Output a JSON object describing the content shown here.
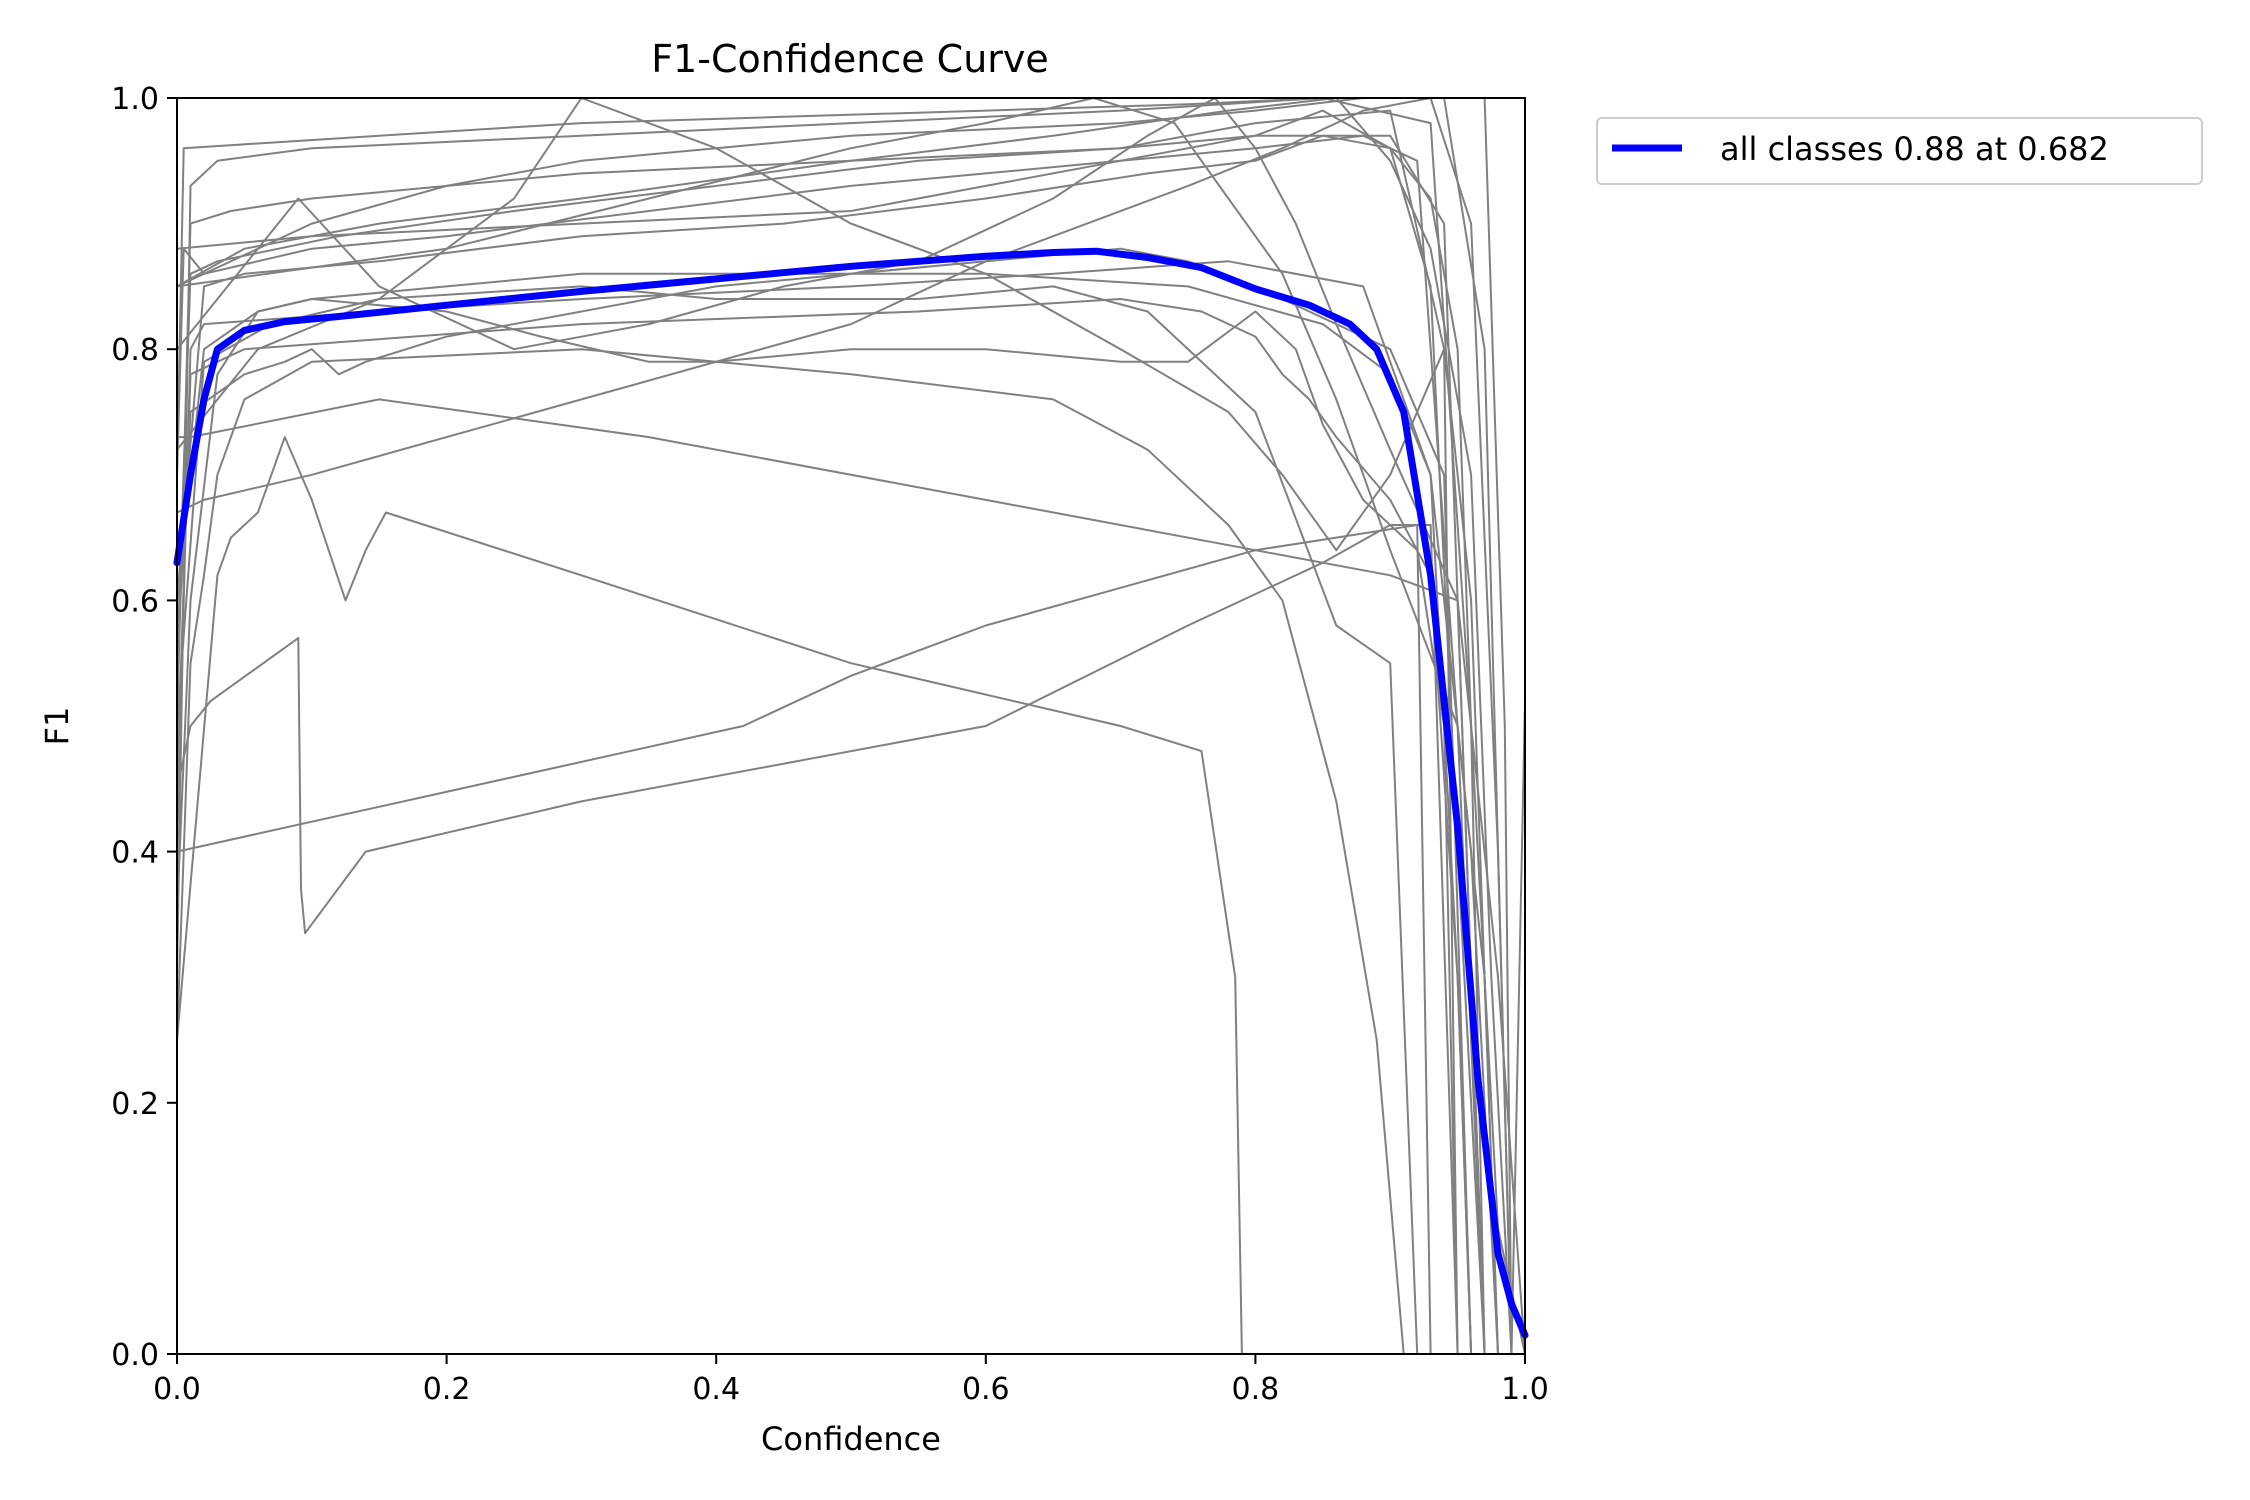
{
  "chart_data": {
    "type": "line",
    "title": "F1-Confidence Curve",
    "xlabel": "Confidence",
    "ylabel": "F1",
    "xlim": [
      0,
      1
    ],
    "ylim": [
      0,
      1
    ],
    "x_ticks": [
      "0.0",
      "0.2",
      "0.4",
      "0.6",
      "0.8",
      "1.0"
    ],
    "y_ticks": [
      "0.0",
      "0.2",
      "0.4",
      "0.6",
      "0.8",
      "1.0"
    ],
    "grid": false,
    "legend_position": "outside-top-right",
    "colors": {
      "all_classes": "#0000ff",
      "per_class": "#808080"
    },
    "series": [
      {
        "name": "all classes 0.88 at 0.682",
        "color": "#0000ff",
        "x": [
          0.0,
          0.01,
          0.02,
          0.03,
          0.05,
          0.08,
          0.12,
          0.2,
          0.3,
          0.4,
          0.5,
          0.6,
          0.65,
          0.682,
          0.72,
          0.76,
          0.8,
          0.84,
          0.87,
          0.89,
          0.91,
          0.93,
          0.95,
          0.965,
          0.98,
          0.99,
          1.0
        ],
        "y": [
          0.63,
          0.7,
          0.76,
          0.8,
          0.815,
          0.822,
          0.826,
          0.835,
          0.846,
          0.856,
          0.866,
          0.874,
          0.877,
          0.878,
          0.873,
          0.865,
          0.848,
          0.835,
          0.82,
          0.8,
          0.75,
          0.62,
          0.42,
          0.22,
          0.08,
          0.04,
          0.015
        ]
      }
    ],
    "class_curves": [
      {
        "x": [
          0.0,
          0.01,
          0.03,
          0.1,
          0.3,
          0.5,
          0.7,
          0.85,
          0.93,
          0.96,
          0.98,
          1.0
        ],
        "y": [
          0.3,
          0.93,
          0.95,
          0.96,
          0.97,
          0.98,
          0.99,
          1.0,
          0.98,
          0.5,
          0.1,
          0.0
        ]
      },
      {
        "x": [
          0.0,
          0.01,
          0.04,
          0.1,
          0.3,
          0.5,
          0.7,
          0.8,
          0.9,
          0.94,
          0.96,
          0.97
        ],
        "y": [
          0.5,
          0.9,
          0.91,
          0.92,
          0.94,
          0.95,
          0.96,
          0.97,
          0.97,
          0.9,
          0.3,
          0.0
        ]
      },
      {
        "x": [
          0.0,
          0.005,
          0.02,
          0.1,
          0.2,
          0.35,
          0.5,
          0.6,
          0.7,
          0.8,
          0.88,
          0.92,
          0.95,
          0.97
        ],
        "y": [
          0.7,
          0.88,
          0.86,
          0.88,
          0.89,
          0.91,
          0.93,
          0.94,
          0.95,
          0.96,
          0.97,
          0.95,
          0.5,
          0.0
        ]
      },
      {
        "x": [
          0.0,
          0.02,
          0.05,
          0.15,
          0.3,
          0.45,
          0.6,
          0.72,
          0.8,
          0.85,
          0.9,
          0.93,
          0.95,
          0.97
        ],
        "y": [
          0.6,
          0.85,
          0.86,
          0.87,
          0.89,
          0.9,
          0.92,
          0.94,
          0.95,
          0.97,
          0.96,
          0.85,
          0.4,
          0.0
        ]
      },
      {
        "x": [
          0.0,
          0.01,
          0.02,
          0.15,
          0.3,
          0.5,
          0.65,
          0.78,
          0.88,
          0.93,
          0.95,
          0.96
        ],
        "y": [
          0.4,
          0.8,
          0.82,
          0.83,
          0.84,
          0.85,
          0.86,
          0.87,
          0.85,
          0.7,
          0.3,
          0.0
        ]
      },
      {
        "x": [
          0.0,
          0.01,
          0.03,
          0.12,
          0.25,
          0.4,
          0.55,
          0.7,
          0.8,
          0.9,
          0.94,
          0.95
        ],
        "y": [
          0.55,
          0.86,
          0.87,
          0.89,
          0.91,
          0.93,
          0.95,
          0.96,
          0.98,
          0.99,
          0.8,
          0.0
        ]
      },
      {
        "x": [
          0.0,
          0.01,
          0.05,
          0.3,
          0.55,
          0.7,
          0.76,
          0.8,
          0.82,
          0.84,
          0.86,
          0.9,
          0.93,
          0.95,
          0.96
        ],
        "y": [
          0.45,
          0.78,
          0.8,
          0.82,
          0.83,
          0.84,
          0.83,
          0.81,
          0.78,
          0.76,
          0.73,
          0.68,
          0.62,
          0.3,
          0.0
        ]
      },
      {
        "x": [
          0.0,
          0.02,
          0.06,
          0.1,
          0.2,
          0.27,
          0.35,
          0.4,
          0.5,
          0.6,
          0.7,
          0.75,
          0.8,
          0.83,
          0.85,
          0.88,
          0.92,
          0.94,
          0.95
        ],
        "y": [
          0.6,
          0.8,
          0.83,
          0.84,
          0.83,
          0.81,
          0.79,
          0.79,
          0.8,
          0.8,
          0.79,
          0.79,
          0.83,
          0.8,
          0.74,
          0.68,
          0.64,
          0.5,
          0.0
        ]
      },
      {
        "x": [
          0.0,
          0.02,
          0.07,
          0.15,
          0.3,
          0.4,
          0.55,
          0.65,
          0.72,
          0.8,
          0.86,
          0.9,
          0.92
        ],
        "y": [
          0.5,
          0.79,
          0.82,
          0.84,
          0.85,
          0.84,
          0.84,
          0.85,
          0.83,
          0.75,
          0.58,
          0.55,
          0.0
        ]
      },
      {
        "x": [
          0.0,
          0.01,
          0.05,
          0.08,
          0.1,
          0.12,
          0.14,
          0.2,
          0.4,
          0.6,
          0.7,
          0.75,
          0.82,
          0.9,
          0.94,
          0.96
        ],
        "y": [
          0.55,
          0.75,
          0.78,
          0.79,
          0.8,
          0.78,
          0.79,
          0.81,
          0.85,
          0.87,
          0.88,
          0.87,
          0.84,
          0.8,
          0.7,
          0.0
        ]
      },
      {
        "x": [
          0.0,
          0.01,
          0.03,
          0.06,
          0.1,
          0.2,
          0.3,
          0.45,
          0.6,
          0.75,
          0.85,
          0.9,
          0.93,
          0.96,
          0.98
        ],
        "y": [
          0.35,
          0.6,
          0.78,
          0.83,
          0.84,
          0.85,
          0.86,
          0.86,
          0.86,
          0.85,
          0.82,
          0.78,
          0.7,
          0.4,
          0.0
        ]
      },
      {
        "x": [
          0.0,
          0.01,
          0.02,
          0.03,
          0.05,
          0.1,
          0.3,
          0.5,
          0.65,
          0.72,
          0.78,
          0.82,
          0.86,
          0.89,
          0.91
        ],
        "y": [
          0.25,
          0.55,
          0.62,
          0.7,
          0.76,
          0.79,
          0.8,
          0.78,
          0.76,
          0.72,
          0.66,
          0.6,
          0.44,
          0.25,
          0.0
        ]
      },
      {
        "x": [
          0.0,
          0.03,
          0.04,
          0.06,
          0.08,
          0.1,
          0.125,
          0.14,
          0.155,
          0.3,
          0.5,
          0.7,
          0.76,
          0.785,
          0.79
        ],
        "y": [
          0.25,
          0.62,
          0.65,
          0.67,
          0.73,
          0.68,
          0.6,
          0.64,
          0.67,
          0.62,
          0.55,
          0.5,
          0.48,
          0.3,
          0.0
        ]
      },
      {
        "x": [
          0.0,
          0.01,
          0.025,
          0.09,
          0.092,
          0.095,
          0.14,
          0.3,
          0.6,
          0.75,
          0.85,
          0.9,
          0.93,
          0.95
        ],
        "y": [
          0.45,
          0.5,
          0.52,
          0.57,
          0.37,
          0.335,
          0.4,
          0.44,
          0.5,
          0.58,
          0.63,
          0.66,
          0.66,
          0.0
        ]
      },
      {
        "x": [
          0.0,
          0.42,
          0.5,
          0.6,
          0.7,
          0.8,
          0.86,
          0.92,
          0.93
        ],
        "y": [
          0.4,
          0.5,
          0.54,
          0.58,
          0.61,
          0.64,
          0.65,
          0.66,
          0.0
        ]
      },
      {
        "x": [
          0.0,
          0.01,
          0.15,
          0.35,
          0.6,
          0.8,
          0.9,
          0.95,
          0.97
        ],
        "y": [
          0.73,
          0.73,
          0.76,
          0.73,
          0.68,
          0.64,
          0.62,
          0.6,
          0.0
        ]
      },
      {
        "x": [
          0.0,
          0.02,
          0.1,
          0.3,
          0.5,
          0.6,
          0.75,
          0.82,
          0.88,
          0.93,
          0.96,
          0.98,
          0.99
        ],
        "y": [
          0.67,
          0.68,
          0.7,
          0.76,
          0.82,
          0.87,
          0.93,
          0.96,
          0.99,
          1.0,
          0.9,
          0.4,
          0.0
        ]
      },
      {
        "x": [
          0.0,
          0.005,
          0.15,
          0.3,
          0.45,
          0.6,
          0.75,
          0.85,
          0.93,
          0.97,
          0.985,
          0.99,
          1.0
        ],
        "y": [
          0.7,
          0.96,
          0.97,
          0.98,
          0.985,
          0.99,
          0.995,
          1.0,
          1.0,
          1.0,
          0.5,
          0.0,
          0.52
        ]
      },
      {
        "x": [
          0.0,
          0.06,
          0.15,
          0.25,
          0.3,
          0.4,
          0.5,
          0.6,
          0.7,
          0.78,
          0.82,
          0.86,
          0.9,
          0.94,
          0.96,
          0.98
        ],
        "y": [
          0.72,
          0.8,
          0.84,
          0.92,
          1.0,
          0.96,
          0.9,
          0.86,
          0.8,
          0.75,
          0.7,
          0.64,
          0.7,
          0.8,
          0.6,
          0.0
        ]
      },
      {
        "x": [
          0.0,
          0.09,
          0.15,
          0.25,
          0.35,
          0.45,
          0.55,
          0.65,
          0.72,
          0.77,
          0.8,
          0.83,
          0.86,
          0.9,
          0.95,
          0.98,
          1.0
        ],
        "y": [
          0.8,
          0.92,
          0.85,
          0.8,
          0.82,
          0.85,
          0.87,
          0.92,
          0.97,
          1.0,
          0.96,
          0.9,
          0.82,
          0.72,
          0.6,
          0.3,
          0.0
        ]
      },
      {
        "x": [
          0.0,
          0.2,
          0.35,
          0.5,
          0.6,
          0.68,
          0.74,
          0.78,
          0.82,
          0.86,
          0.9,
          0.95,
          0.97,
          0.98
        ],
        "y": [
          0.85,
          0.88,
          0.92,
          0.96,
          0.98,
          1.0,
          0.98,
          0.92,
          0.86,
          0.76,
          0.64,
          0.5,
          0.3,
          0.0
        ]
      },
      {
        "x": [
          0.0,
          0.1,
          0.2,
          0.3,
          0.4,
          0.5,
          0.6,
          0.7,
          0.8,
          0.88,
          0.94,
          0.97,
          0.985,
          0.99
        ],
        "y": [
          0.85,
          0.9,
          0.93,
          0.95,
          0.96,
          0.97,
          0.975,
          0.98,
          0.99,
          1.0,
          1.0,
          0.8,
          0.2,
          0.0
        ]
      },
      {
        "x": [
          0.0,
          0.05,
          0.15,
          0.3,
          0.5,
          0.65,
          0.78,
          0.86,
          0.9,
          0.93,
          0.96,
          0.975,
          0.99
        ],
        "y": [
          0.85,
          0.88,
          0.9,
          0.92,
          0.95,
          0.97,
          0.99,
          1.0,
          0.95,
          0.88,
          0.7,
          0.3,
          0.0
        ]
      },
      {
        "x": [
          0.0,
          0.1,
          0.3,
          0.5,
          0.6,
          0.7,
          0.8,
          0.85,
          0.9,
          0.93,
          0.95,
          0.96,
          0.97
        ],
        "y": [
          0.88,
          0.89,
          0.9,
          0.91,
          0.93,
          0.95,
          0.97,
          0.99,
          0.96,
          0.92,
          0.8,
          0.5,
          0.0
        ]
      }
    ]
  }
}
